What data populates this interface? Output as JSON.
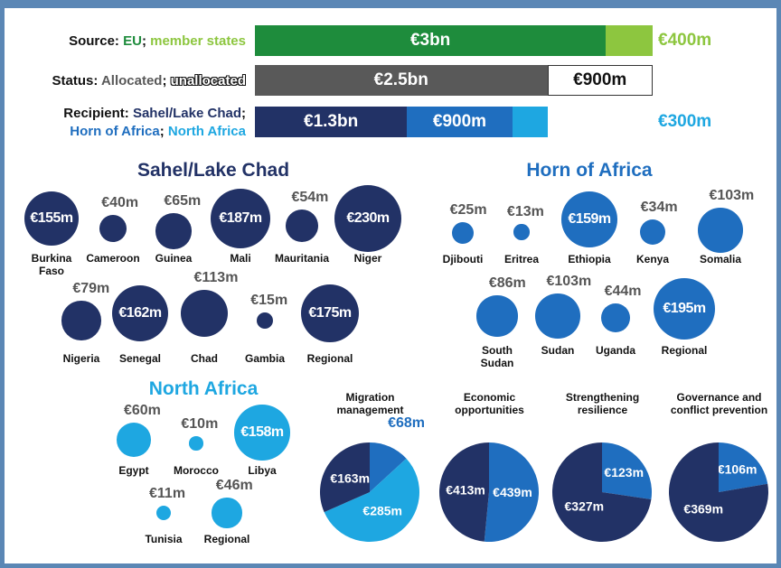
{
  "bars": [
    {
      "label_lines": [
        [
          {
            "text": "Source: ",
            "color": "#111111"
          },
          {
            "text": "EU",
            "color": "#1e8c3c"
          },
          {
            "text": "; ",
            "color": "#111111"
          },
          {
            "text": "member states",
            "color": "#8dc63f"
          }
        ]
      ],
      "segments": [
        {
          "value": 3000000000,
          "label": "€3bn",
          "color": "#1e8c3c"
        },
        {
          "value": 400000000,
          "label": "€400m",
          "color": "#8dc63f"
        }
      ]
    },
    {
      "label_lines": [
        [
          {
            "text": "Status: ",
            "color": "#111111"
          },
          {
            "text": "Allocated",
            "color": "#595959"
          },
          {
            "text": "; ",
            "color": "#111111"
          },
          {
            "text": "unallocated",
            "color": "#ffffff",
            "outline": true
          }
        ]
      ],
      "segments": [
        {
          "value": 2500000000,
          "label": "€2.5bn",
          "color": "#595959"
        },
        {
          "value": 900000000,
          "label": "€900m",
          "color": "#ffffff"
        }
      ]
    },
    {
      "label_lines": [
        [
          {
            "text": "Recipient: ",
            "color": "#111111"
          },
          {
            "text": "Sahel/Lake Chad",
            "color": "#223266"
          },
          {
            "text": ";",
            "color": "#111111"
          }
        ],
        [
          {
            "text": "Horn of Africa",
            "color": "#1f6ebf"
          },
          {
            "text": "; ",
            "color": "#111111"
          },
          {
            "text": "North Africa",
            "color": "#1ea7e1"
          }
        ]
      ],
      "segments": [
        {
          "value": 1300000000,
          "label": "€1.3bn",
          "color": "#223266"
        },
        {
          "value": 900000000,
          "label": "€900m",
          "color": "#1f6ebf"
        },
        {
          "value": 300000000,
          "label": "€300m",
          "color": "#1ea7e1"
        }
      ]
    }
  ],
  "regions": [
    {
      "title": "Sahel/Lake Chad",
      "color": "#223266",
      "items": [
        {
          "name": "Burkina Faso",
          "value": 155000000,
          "label": "€155m"
        },
        {
          "name": "Cameroon",
          "value": 40000000,
          "label": "€40m"
        },
        {
          "name": "Guinea",
          "value": 65000000,
          "label": "€65m"
        },
        {
          "name": "Mali",
          "value": 187000000,
          "label": "€187m"
        },
        {
          "name": "Mauritania",
          "value": 54000000,
          "label": "€54m"
        },
        {
          "name": "Niger",
          "value": 230000000,
          "label": "€230m"
        },
        {
          "name": "Nigeria",
          "value": 79000000,
          "label": "€79m"
        },
        {
          "name": "Senegal",
          "value": 162000000,
          "label": "€162m"
        },
        {
          "name": "Chad",
          "value": 113000000,
          "label": "€113m"
        },
        {
          "name": "Gambia",
          "value": 15000000,
          "label": "€15m"
        },
        {
          "name": "Regional",
          "value": 175000000,
          "label": "€175m"
        }
      ]
    },
    {
      "title": "Horn of Africa",
      "color": "#1f6ebf",
      "items": [
        {
          "name": "Djibouti",
          "value": 25000000,
          "label": "€25m"
        },
        {
          "name": "Eritrea",
          "value": 13000000,
          "label": "€13m"
        },
        {
          "name": "Ethiopia",
          "value": 159000000,
          "label": "€159m"
        },
        {
          "name": "Kenya",
          "value": 34000000,
          "label": "€34m"
        },
        {
          "name": "Somalia",
          "value": 103000000,
          "label": "€103m"
        },
        {
          "name": "South Sudan",
          "value": 86000000,
          "label": "€86m"
        },
        {
          "name": "Sudan",
          "value": 103000000,
          "label": "€103m"
        },
        {
          "name": "Uganda",
          "value": 44000000,
          "label": "€44m"
        },
        {
          "name": "Regional",
          "value": 195000000,
          "label": "€195m"
        }
      ]
    },
    {
      "title": "North Africa",
      "color": "#1ea7e1",
      "items": [
        {
          "name": "Egypt",
          "value": 60000000,
          "label": "€60m"
        },
        {
          "name": "Morocco",
          "value": 10000000,
          "label": "€10m"
        },
        {
          "name": "Libya",
          "value": 158000000,
          "label": "€158m"
        },
        {
          "name": "Tunisia",
          "value": 11000000,
          "label": "€11m"
        },
        {
          "name": "Regional",
          "value": 46000000,
          "label": "€46m"
        }
      ]
    }
  ],
  "pies": [
    {
      "title": "Migration management",
      "slices": [
        {
          "value": 68000000,
          "label": "€68m",
          "color": "#1f6ebf"
        },
        {
          "value": 285000000,
          "label": "€285m",
          "color": "#1ea7e1"
        },
        {
          "value": 163000000,
          "label": "€163m",
          "color": "#223266"
        }
      ]
    },
    {
      "title": "Economic opportunities",
      "slices": [
        {
          "value": 439000000,
          "label": "€439m",
          "color": "#1f6ebf"
        },
        {
          "value": 413000000,
          "label": "€413m",
          "color": "#223266"
        }
      ]
    },
    {
      "title": "Strengthening resilience",
      "slices": [
        {
          "value": 123000000,
          "label": "€123m",
          "color": "#1f6ebf"
        },
        {
          "value": 327000000,
          "label": "€327m",
          "color": "#223266"
        }
      ]
    },
    {
      "title": "Governance and conflict prevention",
      "slices": [
        {
          "value": 106000000,
          "label": "€106m",
          "color": "#1f6ebf"
        },
        {
          "value": 369000000,
          "label": "€369m",
          "color": "#223266"
        }
      ]
    }
  ]
}
